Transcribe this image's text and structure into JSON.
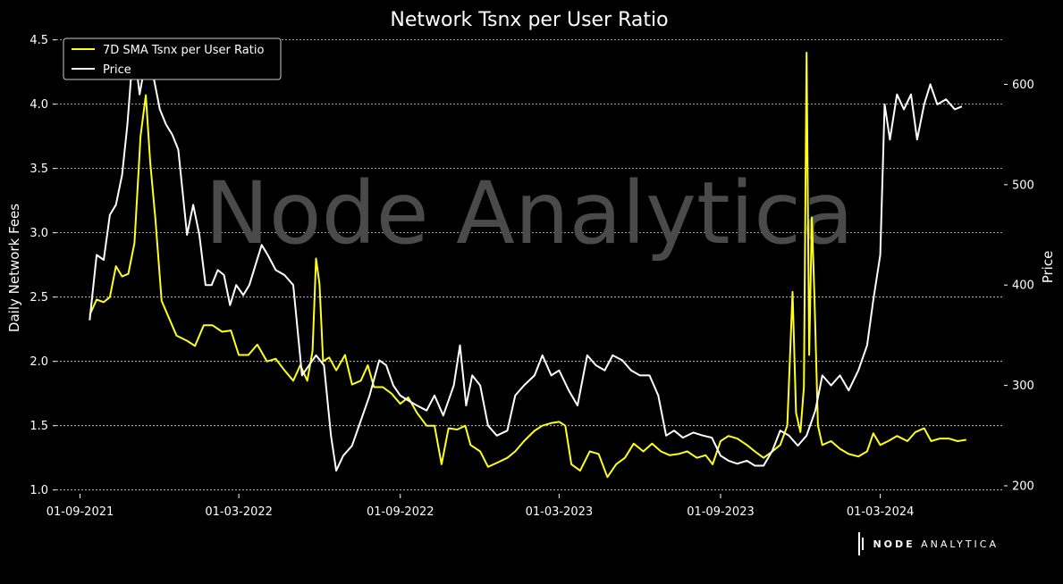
{
  "watermark": "Node Analytica",
  "brand": {
    "bold": "NODE",
    "light": "ANALYTICA"
  },
  "colors": {
    "background": "#000000",
    "ratio": "#ffff1a",
    "price": "#ffffff",
    "grid": "#ffffff",
    "watermark": "#4a4a4a"
  },
  "chart_data": {
    "type": "line",
    "title": "Network Tsnx per User Ratio",
    "ylabel": "Daily Network Fees",
    "y2label": "Price",
    "x_ticks": [
      "01-09-2021",
      "01-03-2022",
      "01-09-2022",
      "01-03-2023",
      "01-09-2023",
      "01-03-2024"
    ],
    "x_tick_dates": [
      "2021-09-01",
      "2022-03-01",
      "2022-09-01",
      "2023-03-01",
      "2023-09-01",
      "2024-03-01"
    ],
    "xlim": [
      "2021-08-05",
      "2024-07-20"
    ],
    "ylim": [
      0.97,
      4.56
    ],
    "y_ticks": [
      "1.0",
      "1.5",
      "2.0",
      "2.5",
      "3.0",
      "3.5",
      "4.0",
      "4.5"
    ],
    "y2lim": [
      192,
      652
    ],
    "y2_ticks": [
      "200",
      "300",
      "400",
      "500",
      "600"
    ],
    "grid": "horizontal dashed",
    "legend_position": "top-left",
    "series": [
      {
        "name": "7D SMA Tsnx per User Ratio",
        "axis": "left",
        "color": "#ffff1a",
        "points": [
          [
            "2021-09-12",
            2.36
          ],
          [
            "2021-09-20",
            2.48
          ],
          [
            "2021-09-28",
            2.46
          ],
          [
            "2021-10-05",
            2.5
          ],
          [
            "2021-10-12",
            2.74
          ],
          [
            "2021-10-19",
            2.66
          ],
          [
            "2021-10-26",
            2.68
          ],
          [
            "2021-11-02",
            2.92
          ],
          [
            "2021-11-09",
            3.75
          ],
          [
            "2021-11-15",
            4.07
          ],
          [
            "2021-11-20",
            3.55
          ],
          [
            "2021-11-26",
            3.1
          ],
          [
            "2021-12-03",
            2.47
          ],
          [
            "2021-12-10",
            2.36
          ],
          [
            "2021-12-20",
            2.2
          ],
          [
            "2022-01-01",
            2.16
          ],
          [
            "2022-01-10",
            2.12
          ],
          [
            "2022-01-20",
            2.28
          ],
          [
            "2022-01-30",
            2.28
          ],
          [
            "2022-02-10",
            2.23
          ],
          [
            "2022-02-20",
            2.24
          ],
          [
            "2022-03-01",
            2.05
          ],
          [
            "2022-03-12",
            2.05
          ],
          [
            "2022-03-22",
            2.13
          ],
          [
            "2022-04-02",
            2.0
          ],
          [
            "2022-04-12",
            2.02
          ],
          [
            "2022-04-22",
            1.93
          ],
          [
            "2022-05-02",
            1.85
          ],
          [
            "2022-05-10",
            1.97
          ],
          [
            "2022-05-18",
            1.85
          ],
          [
            "2022-05-24",
            2.08
          ],
          [
            "2022-05-28",
            2.8
          ],
          [
            "2022-06-01",
            2.6
          ],
          [
            "2022-06-05",
            2.0
          ],
          [
            "2022-06-12",
            2.03
          ],
          [
            "2022-06-20",
            1.93
          ],
          [
            "2022-06-30",
            2.05
          ],
          [
            "2022-07-08",
            1.82
          ],
          [
            "2022-07-18",
            1.85
          ],
          [
            "2022-07-26",
            1.97
          ],
          [
            "2022-08-02",
            1.8
          ],
          [
            "2022-08-12",
            1.8
          ],
          [
            "2022-08-22",
            1.75
          ],
          [
            "2022-09-01",
            1.67
          ],
          [
            "2022-09-10",
            1.72
          ],
          [
            "2022-09-20",
            1.6
          ],
          [
            "2022-10-01",
            1.5
          ],
          [
            "2022-10-10",
            1.5
          ],
          [
            "2022-10-18",
            1.2
          ],
          [
            "2022-10-26",
            1.48
          ],
          [
            "2022-11-05",
            1.47
          ],
          [
            "2022-11-14",
            1.5
          ],
          [
            "2022-11-20",
            1.35
          ],
          [
            "2022-12-01",
            1.3
          ],
          [
            "2022-12-10",
            1.18
          ],
          [
            "2022-12-20",
            1.21
          ],
          [
            "2023-01-01",
            1.25
          ],
          [
            "2023-01-10",
            1.3
          ],
          [
            "2023-01-20",
            1.38
          ],
          [
            "2023-02-01",
            1.46
          ],
          [
            "2023-02-10",
            1.5
          ],
          [
            "2023-02-20",
            1.52
          ],
          [
            "2023-03-01",
            1.53
          ],
          [
            "2023-03-08",
            1.5
          ],
          [
            "2023-03-15",
            1.2
          ],
          [
            "2023-03-25",
            1.15
          ],
          [
            "2023-04-05",
            1.3
          ],
          [
            "2023-04-15",
            1.28
          ],
          [
            "2023-04-25",
            1.1
          ],
          [
            "2023-05-05",
            1.2
          ],
          [
            "2023-05-15",
            1.25
          ],
          [
            "2023-05-25",
            1.36
          ],
          [
            "2023-06-05",
            1.3
          ],
          [
            "2023-06-15",
            1.36
          ],
          [
            "2023-06-25",
            1.3
          ],
          [
            "2023-07-05",
            1.27
          ],
          [
            "2023-07-15",
            1.28
          ],
          [
            "2023-07-25",
            1.3
          ],
          [
            "2023-08-05",
            1.25
          ],
          [
            "2023-08-15",
            1.27
          ],
          [
            "2023-08-23",
            1.2
          ],
          [
            "2023-09-01",
            1.38
          ],
          [
            "2023-09-10",
            1.42
          ],
          [
            "2023-09-20",
            1.4
          ],
          [
            "2023-10-01",
            1.35
          ],
          [
            "2023-10-10",
            1.3
          ],
          [
            "2023-10-20",
            1.25
          ],
          [
            "2023-10-30",
            1.3
          ],
          [
            "2023-11-08",
            1.35
          ],
          [
            "2023-11-16",
            1.5
          ],
          [
            "2023-11-22",
            2.54
          ],
          [
            "2023-11-26",
            1.6
          ],
          [
            "2023-12-01",
            1.45
          ],
          [
            "2023-12-05",
            1.8
          ],
          [
            "2023-12-08",
            4.4
          ],
          [
            "2023-12-11",
            2.05
          ],
          [
            "2023-12-14",
            3.12
          ],
          [
            "2023-12-17",
            2.5
          ],
          [
            "2023-12-21",
            1.5
          ],
          [
            "2023-12-26",
            1.35
          ],
          [
            "2024-01-05",
            1.38
          ],
          [
            "2024-01-15",
            1.32
          ],
          [
            "2024-01-25",
            1.28
          ],
          [
            "2024-02-05",
            1.26
          ],
          [
            "2024-02-15",
            1.3
          ],
          [
            "2024-02-22",
            1.44
          ],
          [
            "2024-03-01",
            1.35
          ],
          [
            "2024-03-10",
            1.38
          ],
          [
            "2024-03-20",
            1.42
          ],
          [
            "2024-04-01",
            1.38
          ],
          [
            "2024-04-10",
            1.45
          ],
          [
            "2024-04-20",
            1.48
          ],
          [
            "2024-04-28",
            1.38
          ],
          [
            "2024-05-08",
            1.4
          ],
          [
            "2024-05-18",
            1.4
          ],
          [
            "2024-05-28",
            1.38
          ],
          [
            "2024-06-07",
            1.39
          ]
        ]
      },
      {
        "name": "Price",
        "axis": "right",
        "color": "#ffffff",
        "points": [
          [
            "2021-09-12",
            365
          ],
          [
            "2021-09-20",
            430
          ],
          [
            "2021-09-28",
            425
          ],
          [
            "2021-10-05",
            470
          ],
          [
            "2021-10-12",
            480
          ],
          [
            "2021-10-19",
            510
          ],
          [
            "2021-10-25",
            560
          ],
          [
            "2021-11-01",
            640
          ],
          [
            "2021-11-08",
            590
          ],
          [
            "2021-11-15",
            625
          ],
          [
            "2021-11-22",
            615
          ],
          [
            "2021-12-01",
            575
          ],
          [
            "2021-12-08",
            560
          ],
          [
            "2021-12-15",
            550
          ],
          [
            "2021-12-22",
            535
          ],
          [
            "2022-01-01",
            450
          ],
          [
            "2022-01-08",
            480
          ],
          [
            "2022-01-15",
            450
          ],
          [
            "2022-01-22",
            400
          ],
          [
            "2022-01-29",
            400
          ],
          [
            "2022-02-05",
            415
          ],
          [
            "2022-02-12",
            410
          ],
          [
            "2022-02-19",
            380
          ],
          [
            "2022-02-26",
            400
          ],
          [
            "2022-03-06",
            390
          ],
          [
            "2022-03-13",
            400
          ],
          [
            "2022-03-20",
            420
          ],
          [
            "2022-03-27",
            440
          ],
          [
            "2022-04-03",
            430
          ],
          [
            "2022-04-12",
            415
          ],
          [
            "2022-04-22",
            410
          ],
          [
            "2022-05-02",
            400
          ],
          [
            "2022-05-12",
            310
          ],
          [
            "2022-05-20",
            320
          ],
          [
            "2022-05-28",
            330
          ],
          [
            "2022-06-06",
            320
          ],
          [
            "2022-06-14",
            250
          ],
          [
            "2022-06-20",
            215
          ],
          [
            "2022-06-28",
            230
          ],
          [
            "2022-07-08",
            240
          ],
          [
            "2022-07-18",
            265
          ],
          [
            "2022-07-28",
            290
          ],
          [
            "2022-08-08",
            325
          ],
          [
            "2022-08-16",
            320
          ],
          [
            "2022-08-24",
            300
          ],
          [
            "2022-09-01",
            290
          ],
          [
            "2022-09-10",
            285
          ],
          [
            "2022-09-20",
            280
          ],
          [
            "2022-10-01",
            275
          ],
          [
            "2022-10-10",
            290
          ],
          [
            "2022-10-20",
            270
          ],
          [
            "2022-11-01",
            300
          ],
          [
            "2022-11-08",
            340
          ],
          [
            "2022-11-15",
            280
          ],
          [
            "2022-11-22",
            310
          ],
          [
            "2022-12-01",
            300
          ],
          [
            "2022-12-10",
            260
          ],
          [
            "2022-12-20",
            250
          ],
          [
            "2023-01-01",
            255
          ],
          [
            "2023-01-10",
            290
          ],
          [
            "2023-01-20",
            300
          ],
          [
            "2023-02-01",
            310
          ],
          [
            "2023-02-10",
            330
          ],
          [
            "2023-02-20",
            310
          ],
          [
            "2023-03-01",
            315
          ],
          [
            "2023-03-12",
            295
          ],
          [
            "2023-03-22",
            280
          ],
          [
            "2023-04-02",
            330
          ],
          [
            "2023-04-12",
            320
          ],
          [
            "2023-04-22",
            315
          ],
          [
            "2023-05-01",
            330
          ],
          [
            "2023-05-12",
            325
          ],
          [
            "2023-05-22",
            315
          ],
          [
            "2023-06-01",
            310
          ],
          [
            "2023-06-12",
            310
          ],
          [
            "2023-06-22",
            290
          ],
          [
            "2023-07-01",
            250
          ],
          [
            "2023-07-10",
            255
          ],
          [
            "2023-07-20",
            248
          ],
          [
            "2023-08-01",
            253
          ],
          [
            "2023-08-12",
            250
          ],
          [
            "2023-08-22",
            248
          ],
          [
            "2023-09-01",
            230
          ],
          [
            "2023-09-10",
            225
          ],
          [
            "2023-09-20",
            222
          ],
          [
            "2023-10-01",
            225
          ],
          [
            "2023-10-10",
            220
          ],
          [
            "2023-10-20",
            220
          ],
          [
            "2023-10-30",
            235
          ],
          [
            "2023-11-08",
            255
          ],
          [
            "2023-11-18",
            250
          ],
          [
            "2023-11-28",
            240
          ],
          [
            "2023-12-08",
            250
          ],
          [
            "2023-12-18",
            275
          ],
          [
            "2023-12-26",
            310
          ],
          [
            "2024-01-05",
            300
          ],
          [
            "2024-01-15",
            310
          ],
          [
            "2024-01-25",
            295
          ],
          [
            "2024-02-05",
            315
          ],
          [
            "2024-02-15",
            340
          ],
          [
            "2024-02-22",
            385
          ],
          [
            "2024-03-01",
            430
          ],
          [
            "2024-03-06",
            580
          ],
          [
            "2024-03-12",
            545
          ],
          [
            "2024-03-20",
            590
          ],
          [
            "2024-03-28",
            575
          ],
          [
            "2024-04-05",
            590
          ],
          [
            "2024-04-12",
            545
          ],
          [
            "2024-04-20",
            580
          ],
          [
            "2024-04-27",
            600
          ],
          [
            "2024-05-05",
            580
          ],
          [
            "2024-05-15",
            585
          ],
          [
            "2024-05-25",
            575
          ],
          [
            "2024-06-02",
            578
          ]
        ]
      }
    ]
  }
}
